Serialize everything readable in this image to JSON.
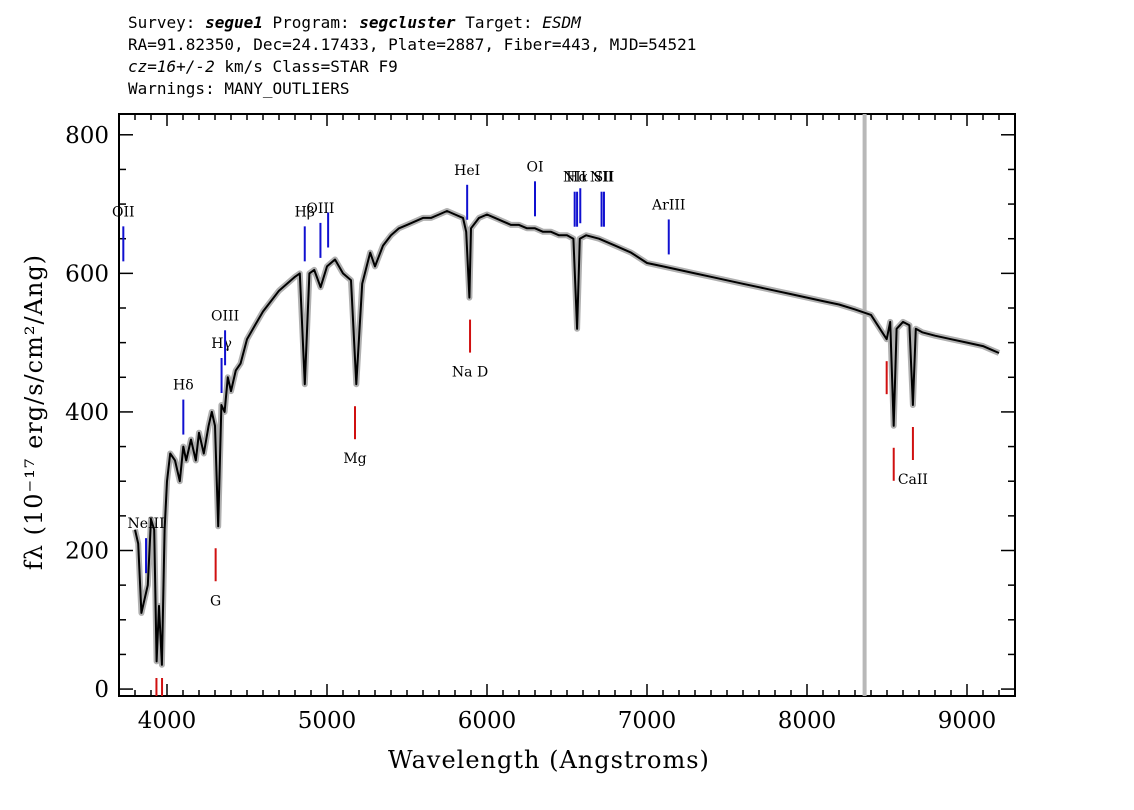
{
  "header": {
    "line1": {
      "survey_label": "Survey:",
      "survey": "segue1",
      "program_label": "Program:",
      "program": "segcluster",
      "target_label": "Target:",
      "target": "ESDM"
    },
    "line2": "RA=91.82350, Dec=24.17433, Plate=2887, Fiber=443, MJD=54521",
    "line3": {
      "cz": "cz=16+/-2",
      "rest": "km/s Class=STAR F9"
    },
    "line4": "Warnings: MANY_OUTLIERS"
  },
  "chart_data": {
    "type": "line",
    "xlabel": "Wavelength (Angstroms)",
    "ylabel": "fλ (10⁻¹⁷ erg/s/cm²/Ang)",
    "xlim": [
      3700,
      9300
    ],
    "ylim": [
      -10,
      830
    ],
    "xticks": [
      4000,
      5000,
      6000,
      7000,
      8000,
      9000
    ],
    "yticks": [
      0,
      200,
      400,
      600,
      800
    ],
    "grid": false,
    "series": [
      {
        "color": "#000000",
        "error_color": "#b0b0b0",
        "x": [
          3800,
          3820,
          3840,
          3860,
          3880,
          3900,
          3920,
          3935,
          3950,
          3968,
          3985,
          4000,
          4020,
          4050,
          4080,
          4102,
          4120,
          4150,
          4180,
          4200,
          4230,
          4260,
          4280,
          4300,
          4320,
          4340,
          4360,
          4380,
          4400,
          4430,
          4460,
          4500,
          4550,
          4600,
          4650,
          4700,
          4750,
          4800,
          4830,
          4861,
          4890,
          4920,
          4960,
          5000,
          5050,
          5100,
          5150,
          5183,
          5220,
          5270,
          5300,
          5350,
          5400,
          5450,
          5500,
          5550,
          5600,
          5650,
          5700,
          5750,
          5800,
          5850,
          5870,
          5890,
          5900,
          5950,
          6000,
          6050,
          6100,
          6150,
          6200,
          6250,
          6300,
          6350,
          6400,
          6450,
          6500,
          6540,
          6563,
          6580,
          6620,
          6700,
          6800,
          6900,
          7000,
          7100,
          7200,
          7300,
          7400,
          7500,
          7600,
          7700,
          7800,
          7900,
          8000,
          8100,
          8200,
          8300,
          8400,
          8498,
          8520,
          8542,
          8560,
          8600,
          8640,
          8662,
          8680,
          8720,
          8800,
          8900,
          9000,
          9100,
          9150,
          9200
        ],
        "y": [
          230,
          210,
          110,
          130,
          150,
          245,
          230,
          40,
          120,
          35,
          230,
          300,
          340,
          330,
          300,
          350,
          330,
          360,
          330,
          370,
          340,
          380,
          400,
          380,
          235,
          410,
          400,
          450,
          430,
          460,
          470,
          505,
          525,
          545,
          560,
          575,
          585,
          595,
          600,
          440,
          600,
          605,
          580,
          610,
          620,
          600,
          590,
          440,
          585,
          630,
          610,
          640,
          655,
          665,
          670,
          675,
          680,
          680,
          685,
          690,
          685,
          680,
          660,
          565,
          665,
          680,
          685,
          680,
          675,
          670,
          670,
          665,
          665,
          660,
          660,
          655,
          655,
          650,
          520,
          650,
          655,
          650,
          640,
          630,
          615,
          610,
          605,
          600,
          595,
          590,
          585,
          580,
          575,
          570,
          565,
          560,
          555,
          548,
          540,
          505,
          530,
          380,
          520,
          530,
          525,
          410,
          520,
          515,
          510,
          505,
          500,
          495,
          490,
          485
        ]
      }
    ],
    "lines": [
      {
        "label": "OII",
        "wave": 3727,
        "color": "blue"
      },
      {
        "label": "NeIII",
        "wave": 3869,
        "color": "blue"
      },
      {
        "label": "Hδ",
        "wave": 4102,
        "color": "blue"
      },
      {
        "label": "Hγ",
        "wave": 4341,
        "color": "blue"
      },
      {
        "label": "OIII",
        "wave": 4363,
        "color": "blue"
      },
      {
        "label": "Hβ",
        "wave": 4861,
        "color": "blue"
      },
      {
        "label": "OIII",
        "wave": 4959,
        "color": "blue"
      },
      {
        "label": "",
        "wave": 5007,
        "color": "blue"
      },
      {
        "label": "HeI",
        "wave": 5876,
        "color": "blue"
      },
      {
        "label": "OI",
        "wave": 6300,
        "color": "blue"
      },
      {
        "label": "NII",
        "wave": 6548,
        "color": "blue"
      },
      {
        "label": "Hα",
        "wave": 6563,
        "color": "blue"
      },
      {
        "label": "",
        "wave": 6583,
        "color": "blue"
      },
      {
        "label": "NII",
        "wave": 6716,
        "color": "blue"
      },
      {
        "label": "SII",
        "wave": 6731,
        "color": "blue"
      },
      {
        "label": "ArIII",
        "wave": 7136,
        "color": "blue"
      },
      {
        "label": "",
        "wave": 3934,
        "color": "red"
      },
      {
        "label": "",
        "wave": 3969,
        "color": "red"
      },
      {
        "label": "G",
        "wave": 4304,
        "color": "red"
      },
      {
        "label": "Mg",
        "wave": 5175,
        "color": "red"
      },
      {
        "label": "Na D",
        "wave": 5894,
        "color": "red"
      },
      {
        "label": "",
        "wave": 8498,
        "color": "red"
      },
      {
        "label": "",
        "wave": 8542,
        "color": "red"
      },
      {
        "label": "CaII",
        "wave": 8662,
        "color": "red"
      }
    ],
    "vertical_marker": {
      "wave": 8360,
      "color": "#b8b8b8"
    }
  }
}
